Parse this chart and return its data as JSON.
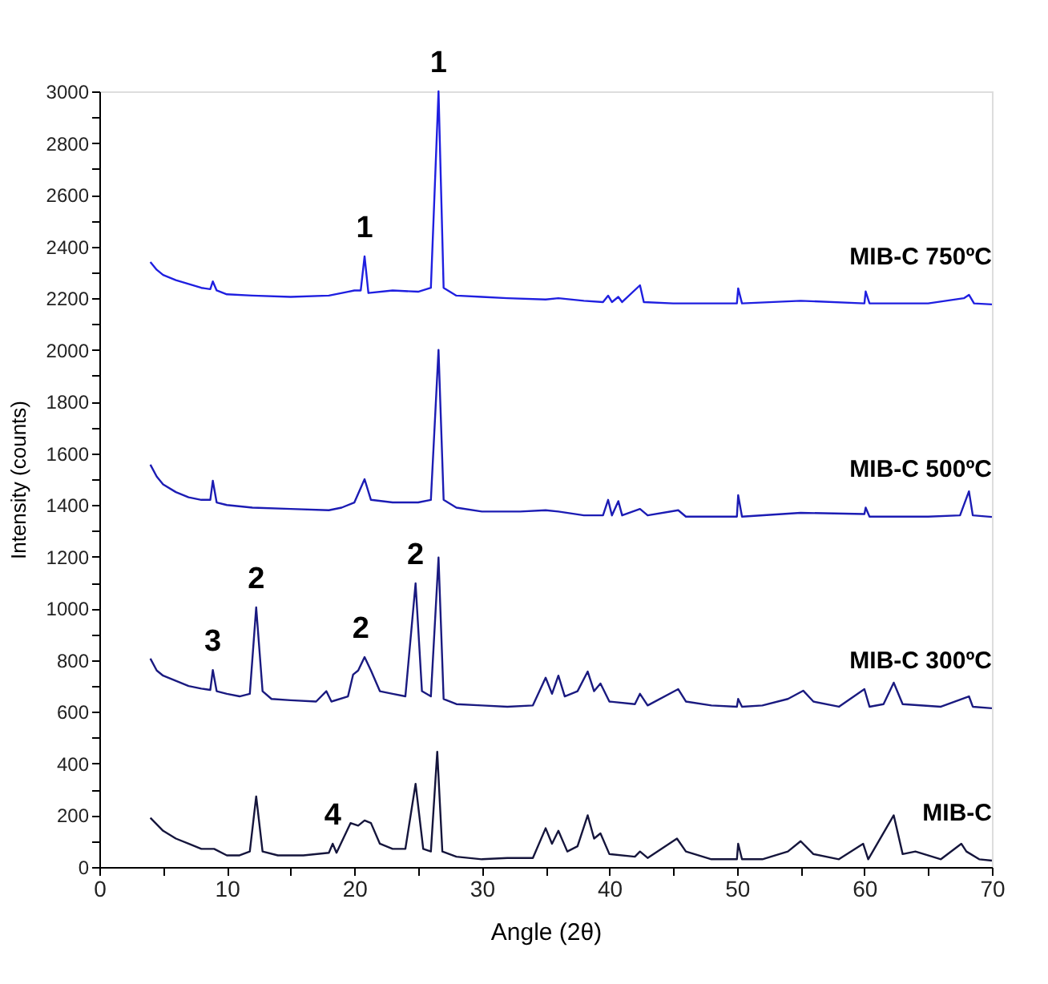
{
  "chart_data": {
    "type": "line",
    "xlabel": "Angle (2θ)",
    "ylabel": "Intensity (counts)",
    "xlim": [
      0,
      70
    ],
    "xticks": [
      0,
      {
        "value": 5,
        "label": null
      },
      10,
      {
        "value": 15,
        "label": null
      },
      20,
      {
        "value": 25,
        "label": null
      },
      30,
      {
        "value": 35,
        "label": null
      },
      40,
      {
        "value": 45,
        "label": null
      },
      50,
      {
        "value": 55,
        "label": null
      },
      60,
      {
        "value": 65,
        "label": null
      },
      70
    ],
    "ylim": [
      0,
      3000
    ],
    "yticks": [
      0,
      {
        "value": 100,
        "label": null
      },
      200,
      {
        "value": 300,
        "label": null
      },
      400,
      {
        "value": 500,
        "label": null
      },
      600,
      {
        "value": 700,
        "label": null
      },
      800,
      {
        "value": 900,
        "label": null
      },
      1000,
      {
        "value": 1100,
        "label": null
      },
      1200,
      {
        "value": 1300,
        "label": null
      },
      1400,
      {
        "value": 1500,
        "label": null
      },
      1600,
      {
        "value": 1700,
        "label": null
      },
      1800,
      {
        "value": 1900,
        "label": null
      },
      2000,
      {
        "value": 2100,
        "label": null
      },
      2200,
      {
        "value": 2300,
        "label": null
      },
      2400,
      {
        "value": 2500,
        "label": null
      },
      2600,
      {
        "value": 2700,
        "label": null
      },
      2800,
      {
        "value": 2900,
        "label": null
      },
      3000
    ],
    "grid": false,
    "legend": false,
    "line_style": "solid",
    "series": [
      {
        "name": "MIB-C 750ºC",
        "color": "#1f1fe0",
        "x": [
          4,
          4.5,
          5,
          6,
          7,
          8,
          8.7,
          8.9,
          9.2,
          10,
          12,
          15,
          18,
          19.5,
          20,
          20.5,
          20.8,
          21.1,
          23,
          25,
          26,
          26.6,
          27,
          28,
          30,
          32,
          35,
          36,
          38,
          39.5,
          39.9,
          40.2,
          40.7,
          41,
          42.4,
          42.7,
          45,
          48,
          50,
          50.1,
          50.4,
          55,
          60,
          60.1,
          60.4,
          65,
          67.8,
          68.2,
          68.6,
          70
        ],
        "values": [
          2340,
          2310,
          2290,
          2270,
          2255,
          2240,
          2235,
          2265,
          2230,
          2215,
          2210,
          2205,
          2210,
          2225,
          2230,
          2230,
          2362,
          2220,
          2230,
          2225,
          2240,
          3000,
          2240,
          2210,
          2205,
          2200,
          2195,
          2200,
          2190,
          2185,
          2210,
          2185,
          2205,
          2185,
          2250,
          2185,
          2180,
          2180,
          2180,
          2238,
          2180,
          2190,
          2180,
          2226,
          2180,
          2180,
          2200,
          2213,
          2180,
          2176
        ]
      },
      {
        "name": "MIB-C 500ºC",
        "color": "#1c1cb4",
        "x": [
          4,
          4.5,
          5,
          6,
          7,
          8,
          8.7,
          8.9,
          9.2,
          10,
          12,
          15,
          18,
          19,
          20,
          20.8,
          21.3,
          23,
          25,
          26,
          26.6,
          27,
          28,
          30,
          33,
          35,
          36,
          38,
          39.5,
          39.9,
          40.2,
          40.7,
          41,
          42.4,
          43,
          45.4,
          46,
          48,
          50,
          50.1,
          50.4,
          55,
          60,
          60.1,
          60.4,
          65,
          67.5,
          68.2,
          68.5,
          70
        ],
        "values": [
          1556,
          1510,
          1480,
          1450,
          1430,
          1420,
          1420,
          1494,
          1410,
          1400,
          1390,
          1385,
          1380,
          1390,
          1410,
          1500,
          1420,
          1410,
          1410,
          1420,
          2000,
          1420,
          1390,
          1375,
          1375,
          1380,
          1375,
          1360,
          1360,
          1420,
          1360,
          1415,
          1360,
          1385,
          1360,
          1380,
          1355,
          1355,
          1355,
          1438,
          1355,
          1370,
          1365,
          1390,
          1355,
          1355,
          1360,
          1453,
          1360,
          1354
        ]
      },
      {
        "name": "MIB-C 300ºC",
        "color": "#1a1a80",
        "x": [
          4,
          4.5,
          5,
          6,
          7,
          8,
          8.7,
          8.9,
          9.2,
          10,
          11,
          11.8,
          12.3,
          12.8,
          13.5,
          15,
          17,
          17.8,
          18.2,
          19.5,
          19.9,
          20.3,
          20.8,
          21.3,
          22,
          23,
          24,
          24.8,
          25.3,
          26,
          26.6,
          27,
          28,
          30,
          32,
          34,
          35,
          35.5,
          36,
          36.5,
          37.5,
          38.3,
          38.8,
          39.3,
          40,
          42,
          42.4,
          43,
          45.4,
          46,
          48,
          50,
          50.1,
          50.4,
          52,
          54,
          55.2,
          56,
          58,
          60,
          60.4,
          61.5,
          62.3,
          63,
          66,
          68.2,
          68.5,
          70
        ],
        "values": [
          806,
          760,
          740,
          720,
          700,
          690,
          685,
          762,
          680,
          670,
          660,
          670,
          1004,
          680,
          650,
          645,
          640,
          680,
          640,
          660,
          744,
          760,
          812,
          760,
          680,
          670,
          660,
          1097,
          680,
          660,
          1197,
          650,
          630,
          625,
          620,
          625,
          732,
          670,
          740,
          660,
          680,
          756,
          680,
          710,
          640,
          630,
          670,
          625,
          688,
          640,
          625,
          620,
          650,
          620,
          625,
          650,
          682,
          640,
          620,
          688,
          620,
          630,
          713,
          630,
          620,
          660,
          620,
          614
        ]
      },
      {
        "name": "MIB-C",
        "color": "#15153c",
        "x": [
          4,
          5,
          6,
          7,
          8,
          9,
          10,
          11,
          11.8,
          12.3,
          12.8,
          14,
          16,
          18,
          18.3,
          18.6,
          19.7,
          20.3,
          20.8,
          21.3,
          22,
          23,
          24,
          24.8,
          25.4,
          26,
          26.5,
          26.9,
          28,
          30,
          32,
          34,
          35,
          35.5,
          36,
          36.7,
          37.5,
          38.3,
          38.8,
          39.3,
          40,
          42,
          42.4,
          43,
          45.3,
          46,
          48,
          50,
          50.1,
          50.4,
          52,
          54,
          55,
          56,
          58,
          59.9,
          60.3,
          62.3,
          63,
          64,
          66,
          67.6,
          68,
          69,
          70
        ],
        "values": [
          190,
          140,
          110,
          90,
          70,
          70,
          45,
          45,
          60,
          273,
          60,
          45,
          45,
          55,
          90,
          55,
          170,
          160,
          180,
          170,
          90,
          70,
          70,
          322,
          70,
          60,
          446,
          60,
          40,
          30,
          35,
          35,
          150,
          90,
          140,
          60,
          80,
          200,
          110,
          130,
          50,
          40,
          60,
          35,
          110,
          60,
          30,
          30,
          90,
          30,
          30,
          60,
          100,
          50,
          30,
          90,
          30,
          200,
          50,
          60,
          30,
          90,
          60,
          30,
          25
        ]
      }
    ],
    "annotations": [
      {
        "text": "1",
        "x": 20.8,
        "y": 2362
      },
      {
        "text": "1",
        "x": 26.6,
        "y": 3000
      },
      {
        "text": "3",
        "x": 8.9,
        "y": 762
      },
      {
        "text": "2",
        "x": 12.3,
        "y": 1004
      },
      {
        "text": "2",
        "x": 20.5,
        "y": 812
      },
      {
        "text": "2",
        "x": 24.8,
        "y": 1097
      },
      {
        "text": "4",
        "x": 18.3,
        "y": 90
      }
    ]
  }
}
